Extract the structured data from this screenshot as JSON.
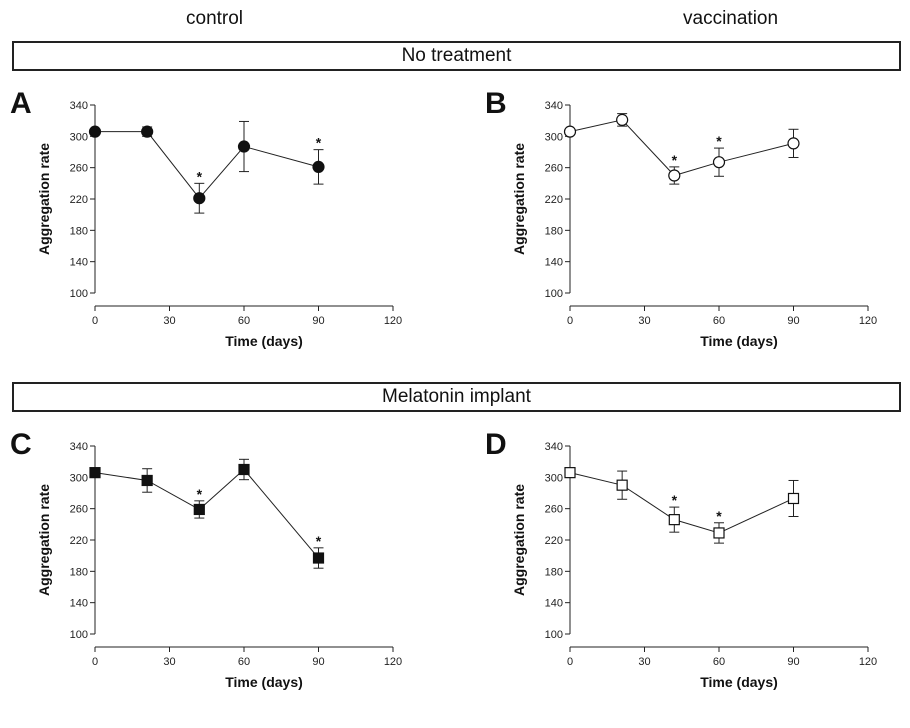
{
  "headers": {
    "left": "control",
    "right": "vaccination"
  },
  "bands": {
    "top": "No treatment",
    "bottom": "Melatonin implant"
  },
  "chart_data": [
    {
      "panel": "A",
      "type": "line",
      "marker": "filled-circle",
      "xlabel": "Time (days)",
      "ylabel": "Aggregation rate",
      "xlim": [
        0,
        120
      ],
      "ylim": [
        100,
        340
      ],
      "xticks": [
        0,
        30,
        60,
        90,
        120
      ],
      "yticks": [
        100,
        140,
        180,
        220,
        260,
        300,
        340
      ],
      "x": [
        0,
        21,
        42,
        60,
        90
      ],
      "y": [
        306,
        306,
        221,
        287,
        261
      ],
      "err": [
        0,
        6,
        19,
        32,
        22
      ],
      "significant": [
        false,
        false,
        true,
        false,
        true
      ]
    },
    {
      "panel": "B",
      "type": "line",
      "marker": "open-circle",
      "xlabel": "Time (days)",
      "ylabel": "Aggregation rate",
      "xlim": [
        0,
        120
      ],
      "ylim": [
        100,
        340
      ],
      "xticks": [
        0,
        30,
        60,
        90,
        120
      ],
      "yticks": [
        100,
        140,
        180,
        220,
        260,
        300,
        340
      ],
      "x": [
        0,
        21,
        42,
        60,
        90
      ],
      "y": [
        306,
        321,
        250,
        267,
        291
      ],
      "err": [
        0,
        8,
        11,
        18,
        18
      ],
      "significant": [
        false,
        false,
        true,
        true,
        false
      ]
    },
    {
      "panel": "C",
      "type": "line",
      "marker": "filled-square",
      "xlabel": "Time (days)",
      "ylabel": "Aggregation rate",
      "xlim": [
        0,
        120
      ],
      "ylim": [
        100,
        340
      ],
      "xticks": [
        0,
        30,
        60,
        90,
        120
      ],
      "yticks": [
        100,
        140,
        180,
        220,
        260,
        300,
        340
      ],
      "x": [
        0,
        21,
        42,
        60,
        90
      ],
      "y": [
        306,
        296,
        259,
        310,
        197
      ],
      "err": [
        0,
        15,
        11,
        13,
        13
      ],
      "significant": [
        false,
        false,
        true,
        false,
        true
      ]
    },
    {
      "panel": "D",
      "type": "line",
      "marker": "open-square",
      "xlabel": "Time (days)",
      "ylabel": "Aggregation rate",
      "xlim": [
        0,
        120
      ],
      "ylim": [
        100,
        340
      ],
      "xticks": [
        0,
        30,
        60,
        90,
        120
      ],
      "yticks": [
        100,
        140,
        180,
        220,
        260,
        300,
        340
      ],
      "x": [
        0,
        21,
        42,
        60,
        90
      ],
      "y": [
        306,
        290,
        246,
        229,
        273
      ],
      "err": [
        0,
        18,
        16,
        13,
        23
      ],
      "significant": [
        false,
        false,
        true,
        true,
        false
      ]
    }
  ]
}
